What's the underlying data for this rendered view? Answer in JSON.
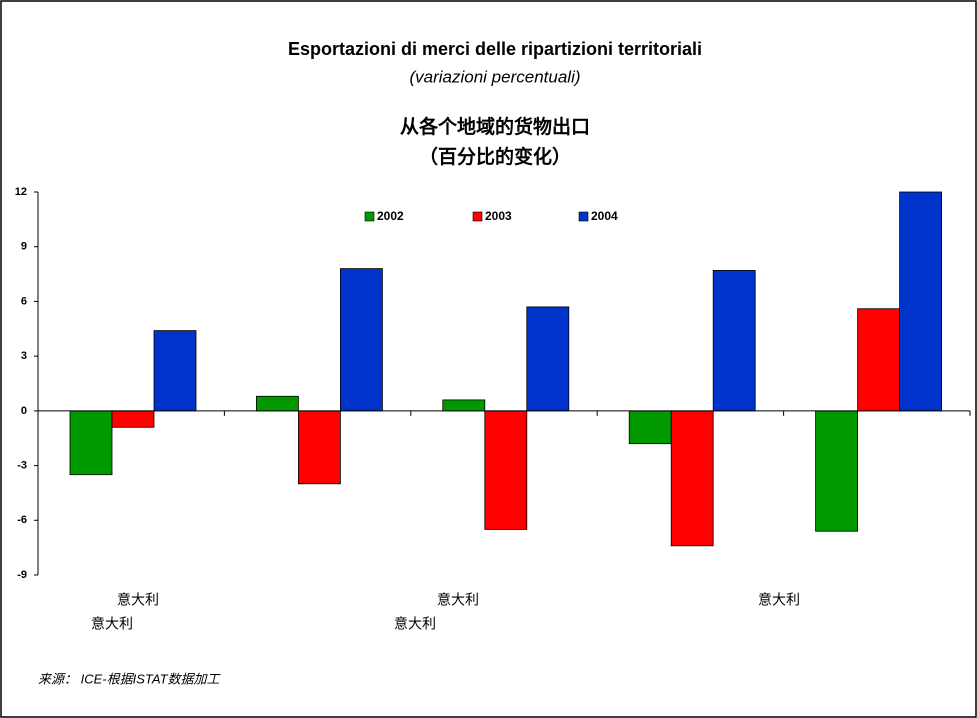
{
  "chart_data": {
    "type": "bar",
    "title": "Esportazioni di merci delle ripartizioni territoriali",
    "subtitle": "(variazioni percentuali)",
    "title_zh": "从各个地域的货物出口",
    "subtitle_zh": "（百分比的变化）",
    "categories": [
      "意大利",
      "意大利",
      "意大利",
      "意大利",
      "意大利"
    ],
    "series": [
      {
        "name": "2002",
        "color": "#009900",
        "values": [
          -3.5,
          0.8,
          0.6,
          -1.8,
          -6.6
        ]
      },
      {
        "name": "2003",
        "color": "#ff0000",
        "values": [
          -0.9,
          -4.0,
          -6.5,
          -7.4,
          5.6
        ]
      },
      {
        "name": "2004",
        "color": "#0033cc",
        "values": [
          4.4,
          7.8,
          5.7,
          7.7,
          12.0
        ]
      }
    ],
    "ylim": [
      -9,
      12
    ],
    "yticks": [
      -9,
      -6,
      -3,
      0,
      3,
      6,
      9,
      12
    ],
    "grid": false,
    "legend": "top",
    "source": "来源： ICE-根据ISTAT数据加工"
  }
}
